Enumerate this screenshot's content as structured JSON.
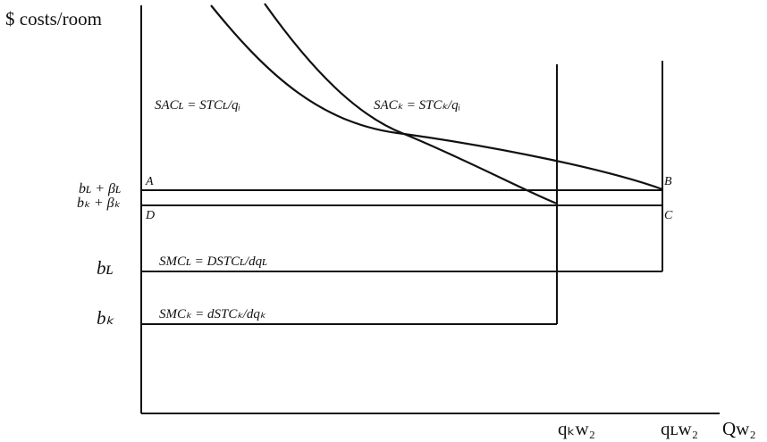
{
  "y_axis_label": "$ costs/room",
  "x_axis": {
    "qK_tick": "qₖw₂",
    "qL_tick": "qʟw₂",
    "end_label": "Qw₂"
  },
  "y_ticks": {
    "bL_plus_betaL": "bʟ + βʟ",
    "bK_plus_betaK": "bₖ + βₖ",
    "bL": "bʟ",
    "bK": "bₖ"
  },
  "points": {
    "A": "A",
    "B": "B",
    "C": "C",
    "D": "D"
  },
  "curves": {
    "SAC_L": "SACʟ = STCʟ/qᵢ",
    "SAC_K": "SACₖ = STCₖ/qᵢ",
    "SMC_L": "SMCʟ = DSTCʟ/dqʟ",
    "SMC_K": "SMCₖ = dSTCₖ/dqₖ"
  }
}
